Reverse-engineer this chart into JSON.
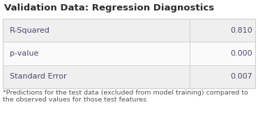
{
  "title": "Validation Data: Regression Diagnostics",
  "rows": [
    {
      "label": "R-Squared",
      "value": "0.810",
      "bg": "#efefef"
    },
    {
      "label": "p-value",
      "value": "0.000",
      "bg": "#fafafa"
    },
    {
      "label": "Standard Error",
      "value": "0.007",
      "bg": "#efefef"
    }
  ],
  "footnote_line1": "*Predictions for the test data (excluded from model training) compared to",
  "footnote_line2": "the observed values for those test features",
  "title_fontsize": 9.5,
  "cell_fontsize": 8.0,
  "footnote_fontsize": 6.8,
  "border_color": "#d0d0d0",
  "title_color": "#2b2b2b",
  "label_color": "#4a4a72",
  "value_color": "#4a4a72",
  "footnote_color": "#555555",
  "bg_outer": "#ffffff",
  "col_split": 0.735
}
